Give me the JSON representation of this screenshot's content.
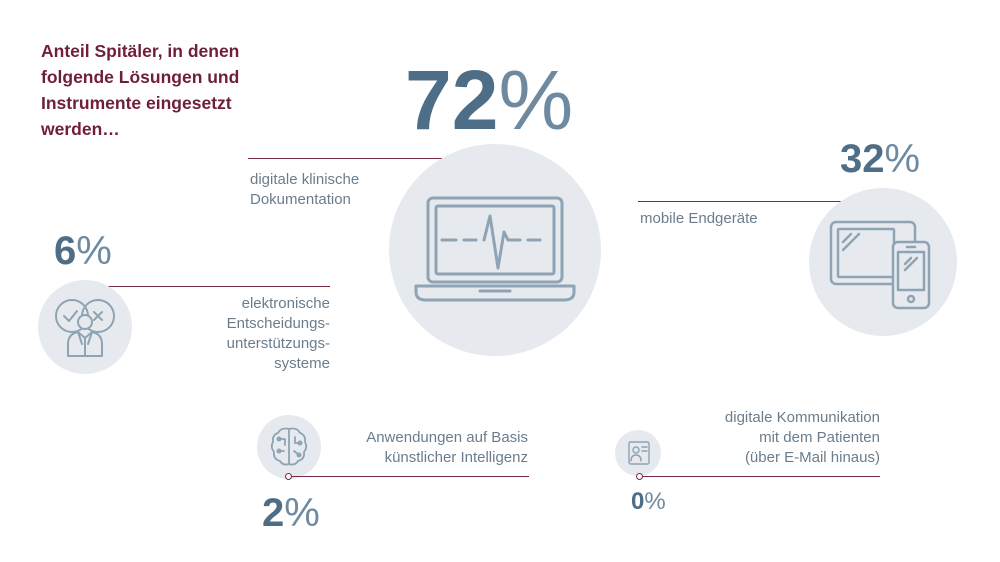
{
  "title": {
    "line1": "Anteil Spitäler, in denen",
    "line2": "folgende Lösungen und",
    "line3": "Instrumente eingesetzt",
    "line4": "werden…"
  },
  "items": {
    "documentation": {
      "value": "72",
      "unit": "%",
      "label_line1": "digitale klinische",
      "label_line2": "Dokumentation",
      "icon": "laptop-heartbeat-icon"
    },
    "mobile": {
      "value": "32",
      "unit": "%",
      "label_line1": "mobile Endgeräte",
      "icon": "tablet-phone-icon"
    },
    "decision_support": {
      "value": "6",
      "unit": "%",
      "label_line1": "elektronische",
      "label_line2": "Entscheidungs-",
      "label_line3": "unterstützungs-",
      "label_line4": "systeme",
      "icon": "doctor-decision-icon"
    },
    "ai": {
      "value": "2",
      "unit": "%",
      "label_line1": "Anwendungen auf Basis",
      "label_line2": "künstlicher Intelligenz",
      "icon": "brain-circuit-icon"
    },
    "communication": {
      "value": "0",
      "unit": "%",
      "label_line1": "digitale Kommunikation",
      "label_line2": "mit dem Patienten",
      "label_line3": "(über E-Mail hinaus)",
      "icon": "patient-card-icon"
    }
  },
  "colors": {
    "title": "#6f1f3c",
    "number": "#4e6d86",
    "label": "#6b7d8c",
    "line": "#7a2a47",
    "circle": "#e6eaee",
    "icon": "#8ea3b4"
  }
}
